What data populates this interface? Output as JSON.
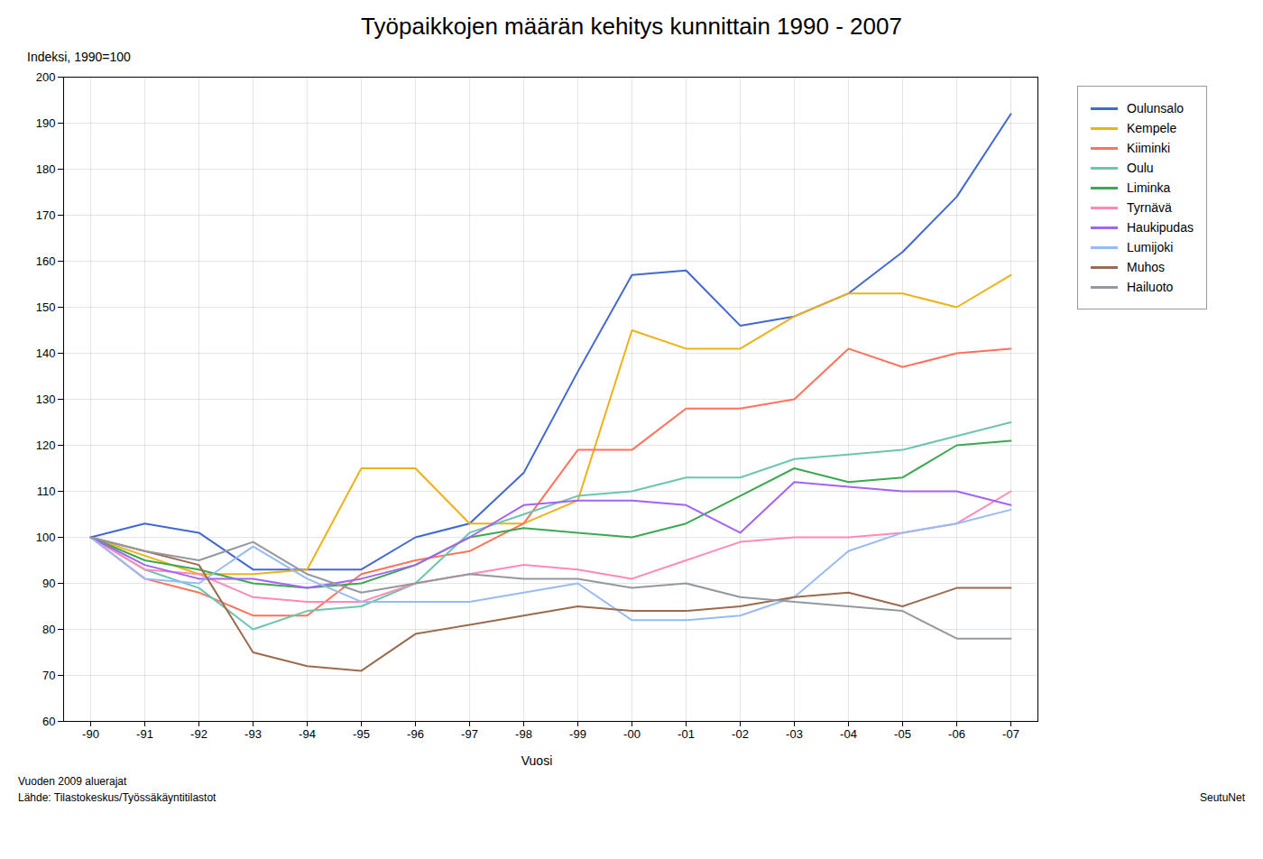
{
  "chart_data": {
    "type": "line",
    "title": "Työpaikkojen määrän kehitys kunnittain 1990 - 2007",
    "xlabel": "Vuosi",
    "ylabel": "Indeksi, 1990=100",
    "annotations": [
      "Vuoden 2009 aluerajat\nLähde: Tilastokeskus/Työssäkäyntitilastot",
      "SeutuNet"
    ],
    "categories": [
      "-90",
      "-91",
      "-92",
      "-93",
      "-94",
      "-95",
      "-96",
      "-97",
      "-98",
      "-99",
      "-00",
      "-01",
      "-02",
      "-03",
      "-04",
      "-05",
      "-06",
      "-07"
    ],
    "series": [
      {
        "name": "Oulunsalo",
        "values": [
          100,
          103,
          101,
          93,
          93,
          93,
          100,
          103,
          114,
          136,
          157,
          158,
          146,
          148,
          153,
          162,
          174,
          192
        ]
      },
      {
        "name": "Kempele",
        "values": [
          100,
          96,
          92,
          92,
          93,
          115,
          115,
          103,
          103,
          108,
          145,
          141,
          141,
          148,
          153,
          153,
          150,
          157
        ]
      },
      {
        "name": "Kiiminki",
        "values": [
          100,
          91,
          88,
          83,
          83,
          92,
          95,
          97,
          103,
          119,
          119,
          128,
          128,
          130,
          141,
          137,
          140,
          141
        ]
      },
      {
        "name": "Oulu",
        "values": [
          100,
          93,
          89,
          80,
          84,
          85,
          90,
          101,
          105,
          109,
          110,
          113,
          113,
          117,
          118,
          119,
          122,
          125
        ]
      },
      {
        "name": "Liminka",
        "values": [
          100,
          95,
          93,
          90,
          89,
          90,
          94,
          100,
          102,
          101,
          100,
          103,
          109,
          115,
          112,
          113,
          120,
          121
        ]
      },
      {
        "name": "Tyrnävä",
        "values": [
          100,
          93,
          92,
          87,
          86,
          86,
          90,
          92,
          94,
          93,
          91,
          95,
          99,
          100,
          100,
          101,
          103,
          110
        ]
      },
      {
        "name": "Haukipudas",
        "values": [
          100,
          94,
          91,
          91,
          89,
          91,
          94,
          100,
          107,
          108,
          108,
          107,
          101,
          112,
          111,
          110,
          110,
          107
        ]
      },
      {
        "name": "Lumijoki",
        "values": [
          100,
          91,
          90,
          98,
          91,
          86,
          86,
          86,
          88,
          90,
          82,
          82,
          83,
          87,
          97,
          101,
          103,
          106
        ]
      },
      {
        "name": "Muhos",
        "values": [
          100,
          97,
          94,
          75,
          72,
          71,
          79,
          81,
          83,
          85,
          84,
          84,
          85,
          87,
          88,
          85,
          89,
          89
        ]
      },
      {
        "name": "Hailuoto",
        "values": [
          100,
          97,
          95,
          99,
          92,
          88,
          90,
          92,
          91,
          91,
          89,
          90,
          87,
          86,
          85,
          84,
          78,
          78
        ]
      }
    ],
    "ylim": [
      60,
      200
    ],
    "yticks": [
      60,
      70,
      80,
      90,
      100,
      110,
      120,
      130,
      140,
      150,
      160,
      170,
      180,
      190,
      200
    ],
    "grid": true,
    "legend": "right"
  }
}
